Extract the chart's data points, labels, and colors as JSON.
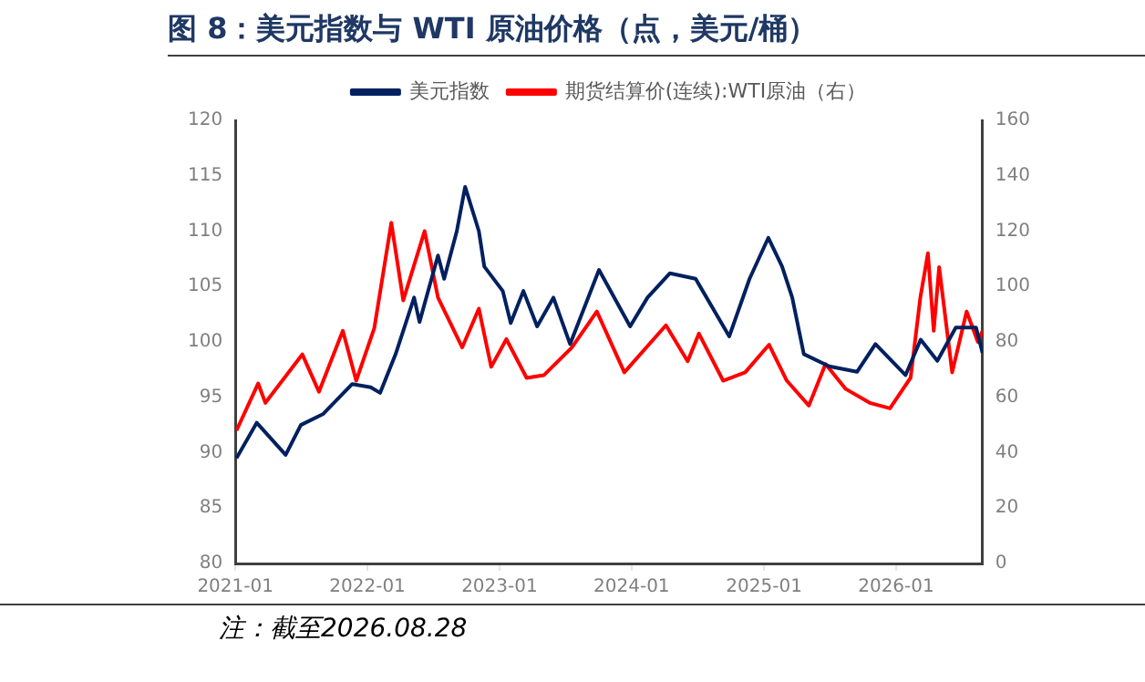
{
  "chart_data": {
    "type": "line",
    "title": "图 8：美元指数与 WTI 原油价格（点，美元/桶）",
    "annotations": [
      "注：截至2026.08.28"
    ],
    "xlim": [
      "2021-01-01",
      "2026-08-28"
    ],
    "xticks": [
      "2021-01",
      "2022-01",
      "2023-01",
      "2024-01",
      "2025-01",
      "2026-01"
    ],
    "ylim": [
      80,
      120
    ],
    "yticks": [
      80,
      85,
      90,
      95,
      100,
      105,
      110,
      115,
      120
    ],
    "y2lim": [
      0,
      160
    ],
    "y2ticks": [
      0,
      20,
      40,
      60,
      80,
      100,
      120,
      140,
      160
    ],
    "grid": false,
    "legend": "top",
    "marker": "none",
    "line_style": "solid",
    "series": [
      {
        "name": "美元指数",
        "color": "#002060",
        "x": [
          "2021-01-04",
          "2021-03-01",
          "2021-05-20",
          "2021-07-01",
          "2021-09-01",
          "2021-11-20",
          "2022-01-10",
          "2022-02-05",
          "2022-03-20",
          "2022-05-10",
          "2022-05-25",
          "2022-07-15",
          "2022-08-01",
          "2022-09-05",
          "2022-09-28",
          "2022-11-05",
          "2022-11-20",
          "2023-01-10",
          "2023-02-01",
          "2023-03-08",
          "2023-04-15",
          "2023-05-30",
          "2023-07-15",
          "2023-10-03",
          "2023-12-28",
          "2024-02-14",
          "2024-04-16",
          "2024-06-26",
          "2024-09-27",
          "2024-11-22",
          "2025-01-13",
          "2025-02-20",
          "2025-03-20",
          "2025-04-21",
          "2025-06-30",
          "2025-09-15",
          "2025-11-05",
          "2026-01-27",
          "2026-03-10",
          "2026-04-25",
          "2026-06-15",
          "2026-08-10",
          "2026-08-28"
        ],
        "values": [
          89.5,
          92.7,
          89.8,
          92.5,
          93.5,
          96.2,
          95.9,
          95.4,
          98.9,
          104,
          101.8,
          107.8,
          105.7,
          110,
          114,
          110,
          106.8,
          104.6,
          101.7,
          104.6,
          101.4,
          104,
          99.8,
          106.5,
          101.4,
          104,
          106.2,
          105.7,
          100.5,
          105.7,
          109.4,
          106.8,
          104,
          98.9,
          97.8,
          97.3,
          99.8,
          97,
          100.2,
          98.3,
          101.3,
          101.3,
          99
        ]
      },
      {
        "name": "期货结算价(连续):WTI原油（右）",
        "color": "#ff0000",
        "axis": "y2",
        "x": [
          "2021-01-04",
          "2021-03-05",
          "2021-03-25",
          "2021-07-05",
          "2021-08-20",
          "2021-10-25",
          "2021-12-01",
          "2022-01-20",
          "2022-03-08",
          "2022-04-10",
          "2022-06-08",
          "2022-07-15",
          "2022-09-20",
          "2022-11-05",
          "2022-12-09",
          "2023-01-20",
          "2023-03-17",
          "2023-05-04",
          "2023-07-20",
          "2023-09-27",
          "2023-12-12",
          "2024-04-05",
          "2024-06-04",
          "2024-07-05",
          "2024-09-10",
          "2024-11-10",
          "2025-01-15",
          "2025-03-05",
          "2025-05-05",
          "2025-06-20",
          "2025-08-15",
          "2025-10-20",
          "2025-12-15",
          "2026-02-10",
          "2026-03-09",
          "2026-03-30",
          "2026-04-15",
          "2026-04-30",
          "2026-06-05",
          "2026-07-15",
          "2026-08-15",
          "2026-08-28"
        ],
        "values": [
          48,
          65,
          58,
          75.5,
          62,
          84,
          66,
          85,
          123,
          95,
          120,
          96,
          78,
          92,
          71,
          81,
          67,
          68,
          78,
          91,
          69,
          86,
          73,
          83,
          66,
          69,
          79,
          66,
          57,
          72,
          63,
          58,
          56,
          67,
          96,
          112,
          84,
          107,
          69,
          91,
          80,
          84
        ]
      }
    ]
  }
}
